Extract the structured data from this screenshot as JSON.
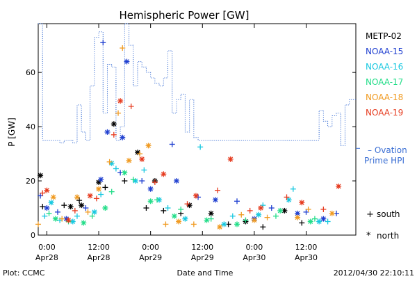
{
  "chart_data": {
    "type": "scatter",
    "title": "Hemispheric Power [GW]",
    "xlabel": "Date and Time",
    "ylabel": "P [GW]",
    "xlim": [
      "2012-04-27 22:00",
      "2012-04-30 23:30"
    ],
    "ylim": [
      0,
      78
    ],
    "grid": false,
    "x_ticks": [
      {
        "t": "2012-04-28 00:00",
        "time": "0:00",
        "date": "Apr28"
      },
      {
        "t": "2012-04-28 12:00",
        "time": "12:00",
        "date": "Apr28"
      },
      {
        "t": "2012-04-29 00:00",
        "time": "0:00",
        "date": "Apr29"
      },
      {
        "t": "2012-04-29 12:00",
        "time": "12:00",
        "date": "Apr29"
      },
      {
        "t": "2012-04-30 00:00",
        "time": "0:00",
        "date": "Apr30"
      },
      {
        "t": "2012-04-30 12:00",
        "time": "12:00",
        "date": "Apr30"
      }
    ],
    "y_ticks": [
      0,
      20,
      40,
      60
    ],
    "legend": {
      "placement": "right",
      "satellites": [
        {
          "name": "METP-02",
          "color": "#000000"
        },
        {
          "name": "NOAA-15",
          "color": "#1f3fd0"
        },
        {
          "name": "NOAA-16",
          "color": "#17c8e0"
        },
        {
          "name": "NOAA-17",
          "color": "#22dd88"
        },
        {
          "name": "NOAA-18",
          "color": "#f09a20"
        },
        {
          "name": "NOAA-19",
          "color": "#e63a1e"
        }
      ],
      "ovation": {
        "line": "– Ovation",
        "line2": "Prime HPI",
        "color": "#3b6fd4"
      },
      "markers": [
        {
          "symbol": "+",
          "label": "south"
        },
        {
          "symbol": "*",
          "label": "north"
        }
      ]
    },
    "footer": {
      "left": "Plot: CCMC",
      "right": "2012/04/30 22:10:11"
    },
    "ovation_series": {
      "name": "Ovation Prime HPI",
      "color": "#3b6fd4",
      "hours": [
        0,
        1,
        2,
        3,
        4,
        5,
        6,
        7,
        8,
        9,
        10,
        11,
        12,
        13,
        14,
        15,
        16,
        17,
        18,
        19,
        20,
        21,
        22,
        23,
        24,
        25,
        26,
        27,
        28,
        29,
        30,
        31,
        32,
        33,
        34,
        35,
        36,
        37,
        38,
        39,
        40,
        41,
        42,
        43,
        44,
        45,
        46,
        47,
        48,
        49,
        50,
        51,
        52,
        53,
        54,
        55,
        56,
        57,
        58,
        59,
        60,
        61,
        62,
        63,
        64,
        65,
        66,
        67,
        68,
        69,
        70,
        71,
        72
      ],
      "values": [
        78,
        35,
        35,
        35,
        35,
        34,
        35,
        35,
        34,
        48,
        38,
        35,
        55,
        73,
        75,
        45,
        63,
        62,
        35,
        40,
        78,
        70,
        55,
        64,
        62,
        60,
        58,
        56,
        55,
        58,
        68,
        45,
        50,
        52,
        38,
        50,
        36,
        35,
        35,
        35,
        35,
        35,
        35,
        35,
        35,
        35,
        35,
        35,
        35,
        35,
        35,
        35,
        35,
        35,
        35,
        35,
        35,
        35,
        35,
        35,
        35,
        35,
        35,
        35,
        35,
        46,
        42,
        40,
        44,
        45,
        33,
        48,
        50
      ]
    },
    "series": [
      {
        "name": "METP-02",
        "color": "#000000",
        "south": [
          [
            1.0,
            10.5
          ],
          [
            6.0,
            11.0
          ],
          [
            9.5,
            12.8
          ],
          [
            15.5,
            17.6
          ],
          [
            20.0,
            20.0
          ],
          [
            25.0,
            10.0
          ],
          [
            29.0,
            9.0
          ],
          [
            33.0,
            8.0
          ],
          [
            44.0,
            4.0
          ],
          [
            52.0,
            3.0
          ],
          [
            61.0,
            4.5
          ]
        ],
        "north": [
          [
            0.5,
            22.0
          ],
          [
            7.5,
            10.5
          ],
          [
            10.0,
            11.0
          ],
          [
            14.0,
            19.5
          ],
          [
            17.5,
            41.0
          ],
          [
            23.0,
            30.5
          ],
          [
            27.0,
            20.0
          ],
          [
            35.0,
            11.0
          ],
          [
            40.0,
            8.0
          ],
          [
            48.0,
            5.0
          ],
          [
            57.0,
            9.0
          ]
        ]
      },
      {
        "name": "NOAA-15",
        "color": "#1f3fd0",
        "south": [
          [
            0.5,
            14.5
          ],
          [
            4.5,
            8.5
          ],
          [
            11.0,
            10.0
          ],
          [
            15.0,
            71.0
          ],
          [
            19.0,
            23.0
          ],
          [
            24.0,
            20.0
          ],
          [
            31.0,
            33.5
          ],
          [
            37.0,
            14.0
          ],
          [
            46.0,
            12.5
          ],
          [
            54.0,
            10.0
          ],
          [
            62.0,
            8.5
          ],
          [
            69.0,
            8.0
          ]
        ],
        "north": [
          [
            2.0,
            10.0
          ],
          [
            6.5,
            6.0
          ],
          [
            14.5,
            20.5
          ],
          [
            16.0,
            38.0
          ],
          [
            19.5,
            36.0
          ],
          [
            20.5,
            64.0
          ],
          [
            26.0,
            17.0
          ],
          [
            32.0,
            20.0
          ],
          [
            41.0,
            13.0
          ],
          [
            50.0,
            6.0
          ],
          [
            60.0,
            8.0
          ],
          [
            66.0,
            6.0
          ]
        ]
      },
      {
        "name": "NOAA-16",
        "color": "#17c8e0",
        "south": [
          [
            1.5,
            7.0
          ],
          [
            5.0,
            5.5
          ],
          [
            9.0,
            7.0
          ],
          [
            14.5,
            15.0
          ],
          [
            18.0,
            24.5
          ],
          [
            24.5,
            24.0
          ],
          [
            30.0,
            10.0
          ],
          [
            37.5,
            32.5
          ],
          [
            45.0,
            7.0
          ],
          [
            52.0,
            11.0
          ],
          [
            59.0,
            17.0
          ],
          [
            67.0,
            5.0
          ]
        ],
        "north": [
          [
            3.0,
            12.0
          ],
          [
            8.0,
            5.0
          ],
          [
            13.0,
            8.5
          ],
          [
            17.0,
            26.5
          ],
          [
            22.5,
            20.0
          ],
          [
            28.0,
            13.0
          ],
          [
            34.0,
            6.0
          ],
          [
            43.0,
            4.0
          ],
          [
            51.0,
            7.5
          ],
          [
            58.0,
            13.0
          ],
          [
            65.0,
            5.0
          ]
        ]
      },
      {
        "name": "NOAA-17",
        "color": "#22dd88",
        "south": [
          [
            2.5,
            8.0
          ],
          [
            7.0,
            5.0
          ],
          [
            12.5,
            7.0
          ],
          [
            17.0,
            16.0
          ],
          [
            22.0,
            20.5
          ],
          [
            27.5,
            13.0
          ],
          [
            33.0,
            9.5
          ],
          [
            40.0,
            6.0
          ],
          [
            48.0,
            5.5
          ],
          [
            55.0,
            7.0
          ],
          [
            64.0,
            6.0
          ]
        ],
        "north": [
          [
            4.0,
            6.0
          ],
          [
            10.5,
            4.5
          ],
          [
            15.5,
            10.0
          ],
          [
            20.0,
            23.0
          ],
          [
            26.0,
            12.5
          ],
          [
            31.5,
            7.0
          ],
          [
            39.0,
            5.5
          ],
          [
            46.0,
            4.0
          ],
          [
            56.0,
            9.0
          ],
          [
            63.0,
            5.0
          ]
        ]
      },
      {
        "name": "NOAA-18",
        "color": "#f09a20",
        "south": [
          [
            0.0,
            4.0
          ],
          [
            5.5,
            6.0
          ],
          [
            11.5,
            8.5
          ],
          [
            16.5,
            27.0
          ],
          [
            18.5,
            45.0
          ],
          [
            19.5,
            69.0
          ],
          [
            23.5,
            30.0
          ],
          [
            29.5,
            4.0
          ],
          [
            36.0,
            4.0
          ],
          [
            47.0,
            7.5
          ],
          [
            53.0,
            6.5
          ],
          [
            62.5,
            9.5
          ]
        ],
        "north": [
          [
            3.5,
            14.0
          ],
          [
            9.0,
            14.0
          ],
          [
            14.0,
            17.0
          ],
          [
            21.0,
            27.5
          ],
          [
            25.5,
            33.0
          ],
          [
            32.5,
            5.0
          ],
          [
            42.0,
            3.0
          ],
          [
            50.0,
            5.5
          ],
          [
            60.0,
            6.5
          ],
          [
            68.0,
            8.0
          ]
        ]
      },
      {
        "name": "NOAA-19",
        "color": "#e63a1e",
        "south": [
          [
            1.0,
            15.5
          ],
          [
            8.5,
            9.0
          ],
          [
            13.5,
            13.5
          ],
          [
            17.5,
            37.0
          ],
          [
            21.5,
            47.5
          ],
          [
            27.0,
            19.5
          ],
          [
            34.5,
            11.5
          ],
          [
            41.5,
            16.5
          ],
          [
            49.0,
            9.0
          ],
          [
            57.5,
            14.0
          ],
          [
            66.0,
            9.5
          ]
        ],
        "north": [
          [
            2.0,
            16.5
          ],
          [
            7.0,
            5.5
          ],
          [
            12.0,
            14.5
          ],
          [
            19.0,
            49.5
          ],
          [
            24.0,
            28.0
          ],
          [
            29.0,
            22.5
          ],
          [
            36.5,
            14.5
          ],
          [
            44.5,
            28.0
          ],
          [
            51.5,
            10.0
          ],
          [
            61.0,
            12.0
          ],
          [
            69.5,
            18.0
          ]
        ]
      }
    ]
  }
}
